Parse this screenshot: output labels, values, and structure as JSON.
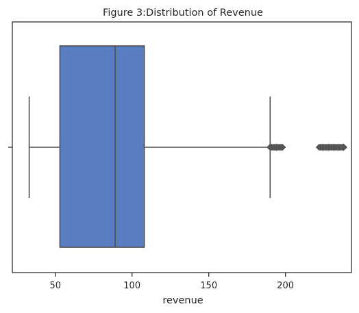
{
  "chart_data": {
    "type": "boxplot",
    "title": "Figure 3:Distribution of Revenue",
    "xlabel": "revenue",
    "ylabel": "",
    "orientation": "horizontal",
    "xlim": [
      22,
      243
    ],
    "xticks": [
      50,
      100,
      150,
      200
    ],
    "grid": false,
    "box": {
      "whisker_low": 33,
      "q1": 53,
      "median": 89,
      "q3": 108,
      "whisker_high": 190,
      "outliers": [
        190,
        191,
        192,
        193,
        194,
        195,
        196,
        197,
        198,
        222,
        223,
        224,
        225,
        226,
        227,
        228,
        229,
        230,
        231,
        232,
        233,
        234,
        235,
        236,
        237,
        238
      ]
    },
    "colors": {
      "box_fill": "#5a7ec4",
      "line": "#4d4d4d",
      "outlier": "#555555",
      "axes": "#262626"
    }
  }
}
